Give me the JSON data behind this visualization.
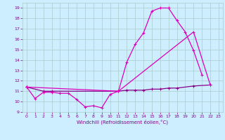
{
  "xlabel": "Windchill (Refroidissement éolien,°C)",
  "bg_color": "#cceeff",
  "grid_color": "#aacccc",
  "line_color_bright": "#dd00bb",
  "line_color_dark": "#880088",
  "xlim": [
    -0.5,
    23.5
  ],
  "ylim": [
    9,
    19.5
  ],
  "yticks": [
    9,
    10,
    11,
    12,
    13,
    14,
    15,
    16,
    17,
    18,
    19
  ],
  "xticks": [
    0,
    1,
    2,
    3,
    4,
    5,
    6,
    7,
    8,
    9,
    10,
    11,
    12,
    13,
    14,
    15,
    16,
    17,
    18,
    19,
    20,
    21,
    22,
    23
  ],
  "curve1_x": [
    0,
    1,
    2,
    3,
    4,
    5,
    6,
    7,
    8,
    9,
    10,
    11,
    12,
    13,
    14,
    15,
    16,
    17,
    18,
    19,
    20,
    21
  ],
  "curve1_y": [
    11.4,
    10.3,
    10.9,
    10.9,
    10.8,
    10.8,
    10.2,
    9.5,
    9.6,
    9.4,
    10.7,
    11.0,
    13.8,
    15.5,
    16.6,
    18.7,
    19.0,
    19.0,
    17.8,
    16.7,
    14.9,
    12.6
  ],
  "curve2_x": [
    0,
    2,
    3,
    11,
    12,
    13,
    14,
    15,
    16,
    17,
    18,
    20,
    22
  ],
  "curve2_y": [
    11.4,
    11.0,
    11.0,
    11.0,
    11.1,
    11.1,
    11.1,
    11.2,
    11.2,
    11.3,
    11.3,
    11.5,
    11.6
  ],
  "curve3_x": [
    0,
    11,
    20,
    22
  ],
  "curve3_y": [
    11.4,
    11.0,
    16.7,
    11.6
  ]
}
